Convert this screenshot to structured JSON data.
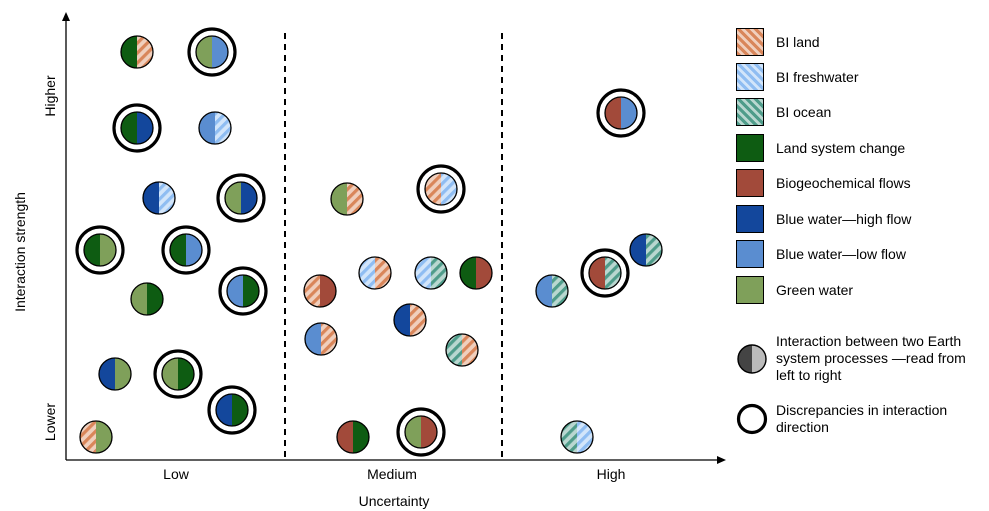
{
  "axes": {
    "x_label": "Uncertainty",
    "y_label": "Interaction strength",
    "x_ticks": [
      "Low",
      "Medium",
      "High"
    ],
    "y_high": "Higher",
    "y_low": "Lower"
  },
  "processes": [
    {
      "id": "bi_land",
      "label": "BI land",
      "color": "#d9865a",
      "hatched": true
    },
    {
      "id": "bi_fresh",
      "label": "BI freshwater",
      "color": "#8fbdf2",
      "hatched": true
    },
    {
      "id": "bi_ocean",
      "label": "BI ocean",
      "color": "#4f9c8a",
      "hatched": true
    },
    {
      "id": "land_sys",
      "label": "Land system change",
      "color": "#0e5c12",
      "hatched": false
    },
    {
      "id": "biogeo",
      "label": "Biogeochemical flows",
      "color": "#a24a3a",
      "hatched": false
    },
    {
      "id": "blue_high",
      "label": "Blue water—high flow",
      "color": "#13479c",
      "hatched": false
    },
    {
      "id": "blue_low",
      "label": "Blue water—low flow",
      "color": "#5a8dd0",
      "hatched": false
    },
    {
      "id": "green",
      "label": "Green water",
      "color": "#7fa05a",
      "hatched": false
    }
  ],
  "legend_extra": {
    "interaction": "Interaction between two Earth system processes —read from left to right",
    "discrepancy": "Discrepancies in interaction direction"
  },
  "chart_data": {
    "type": "scatter",
    "xlabel": "Uncertainty",
    "ylabel": "Interaction strength",
    "x_categories": [
      "Low",
      "Medium",
      "High"
    ],
    "points": [
      {
        "column": "Low",
        "left": "land_sys",
        "right": "bi_land",
        "discrepancy": false
      },
      {
        "column": "Low",
        "left": "green",
        "right": "blue_low",
        "discrepancy": true
      },
      {
        "column": "Low",
        "left": "land_sys",
        "right": "blue_high",
        "discrepancy": true
      },
      {
        "column": "Low",
        "left": "blue_low",
        "right": "bi_fresh",
        "discrepancy": false
      },
      {
        "column": "Low",
        "left": "blue_high",
        "right": "bi_fresh",
        "discrepancy": false
      },
      {
        "column": "Low",
        "left": "green",
        "right": "blue_high",
        "discrepancy": true
      },
      {
        "column": "Low",
        "left": "land_sys",
        "right": "green",
        "discrepancy": true
      },
      {
        "column": "Low",
        "left": "land_sys",
        "right": "blue_low",
        "discrepancy": true
      },
      {
        "column": "Low",
        "left": "blue_low",
        "right": "land_sys",
        "discrepancy": true
      },
      {
        "column": "Low",
        "left": "green",
        "right": "land_sys",
        "discrepancy": false
      },
      {
        "column": "Low",
        "left": "blue_high",
        "right": "green",
        "discrepancy": false
      },
      {
        "column": "Low",
        "left": "green",
        "right": "land_sys",
        "discrepancy": true
      },
      {
        "column": "Low",
        "left": "blue_high",
        "right": "land_sys",
        "discrepancy": true
      },
      {
        "column": "Low",
        "left": "bi_land",
        "right": "green",
        "discrepancy": false
      },
      {
        "column": "Medium",
        "left": "green",
        "right": "bi_land",
        "discrepancy": false
      },
      {
        "column": "Medium",
        "left": "bi_land",
        "right": "bi_fresh",
        "discrepancy": true
      },
      {
        "column": "Medium",
        "left": "bi_fresh",
        "right": "bi_land",
        "discrepancy": false
      },
      {
        "column": "Medium",
        "left": "bi_fresh",
        "right": "bi_ocean",
        "discrepancy": false
      },
      {
        "column": "Medium",
        "left": "land_sys",
        "right": "biogeo",
        "discrepancy": false
      },
      {
        "column": "Medium",
        "left": "bi_land",
        "right": "biogeo",
        "discrepancy": false
      },
      {
        "column": "Medium",
        "left": "blue_high",
        "right": "bi_land",
        "discrepancy": false
      },
      {
        "column": "Medium",
        "left": "blue_low",
        "right": "bi_land",
        "discrepancy": false
      },
      {
        "column": "Medium",
        "left": "bi_ocean",
        "right": "bi_land",
        "discrepancy": false
      },
      {
        "column": "Medium",
        "left": "biogeo",
        "right": "land_sys",
        "discrepancy": false
      },
      {
        "column": "Medium",
        "left": "green",
        "right": "biogeo",
        "discrepancy": true
      },
      {
        "column": "High",
        "left": "biogeo",
        "right": "blue_low",
        "discrepancy": true
      },
      {
        "column": "High",
        "left": "blue_high",
        "right": "bi_ocean",
        "discrepancy": false
      },
      {
        "column": "High",
        "left": "biogeo",
        "right": "bi_ocean",
        "discrepancy": true
      },
      {
        "column": "High",
        "left": "blue_low",
        "right": "bi_ocean",
        "discrepancy": false
      },
      {
        "column": "High",
        "left": "bi_ocean",
        "right": "bi_fresh",
        "discrepancy": false
      }
    ]
  }
}
